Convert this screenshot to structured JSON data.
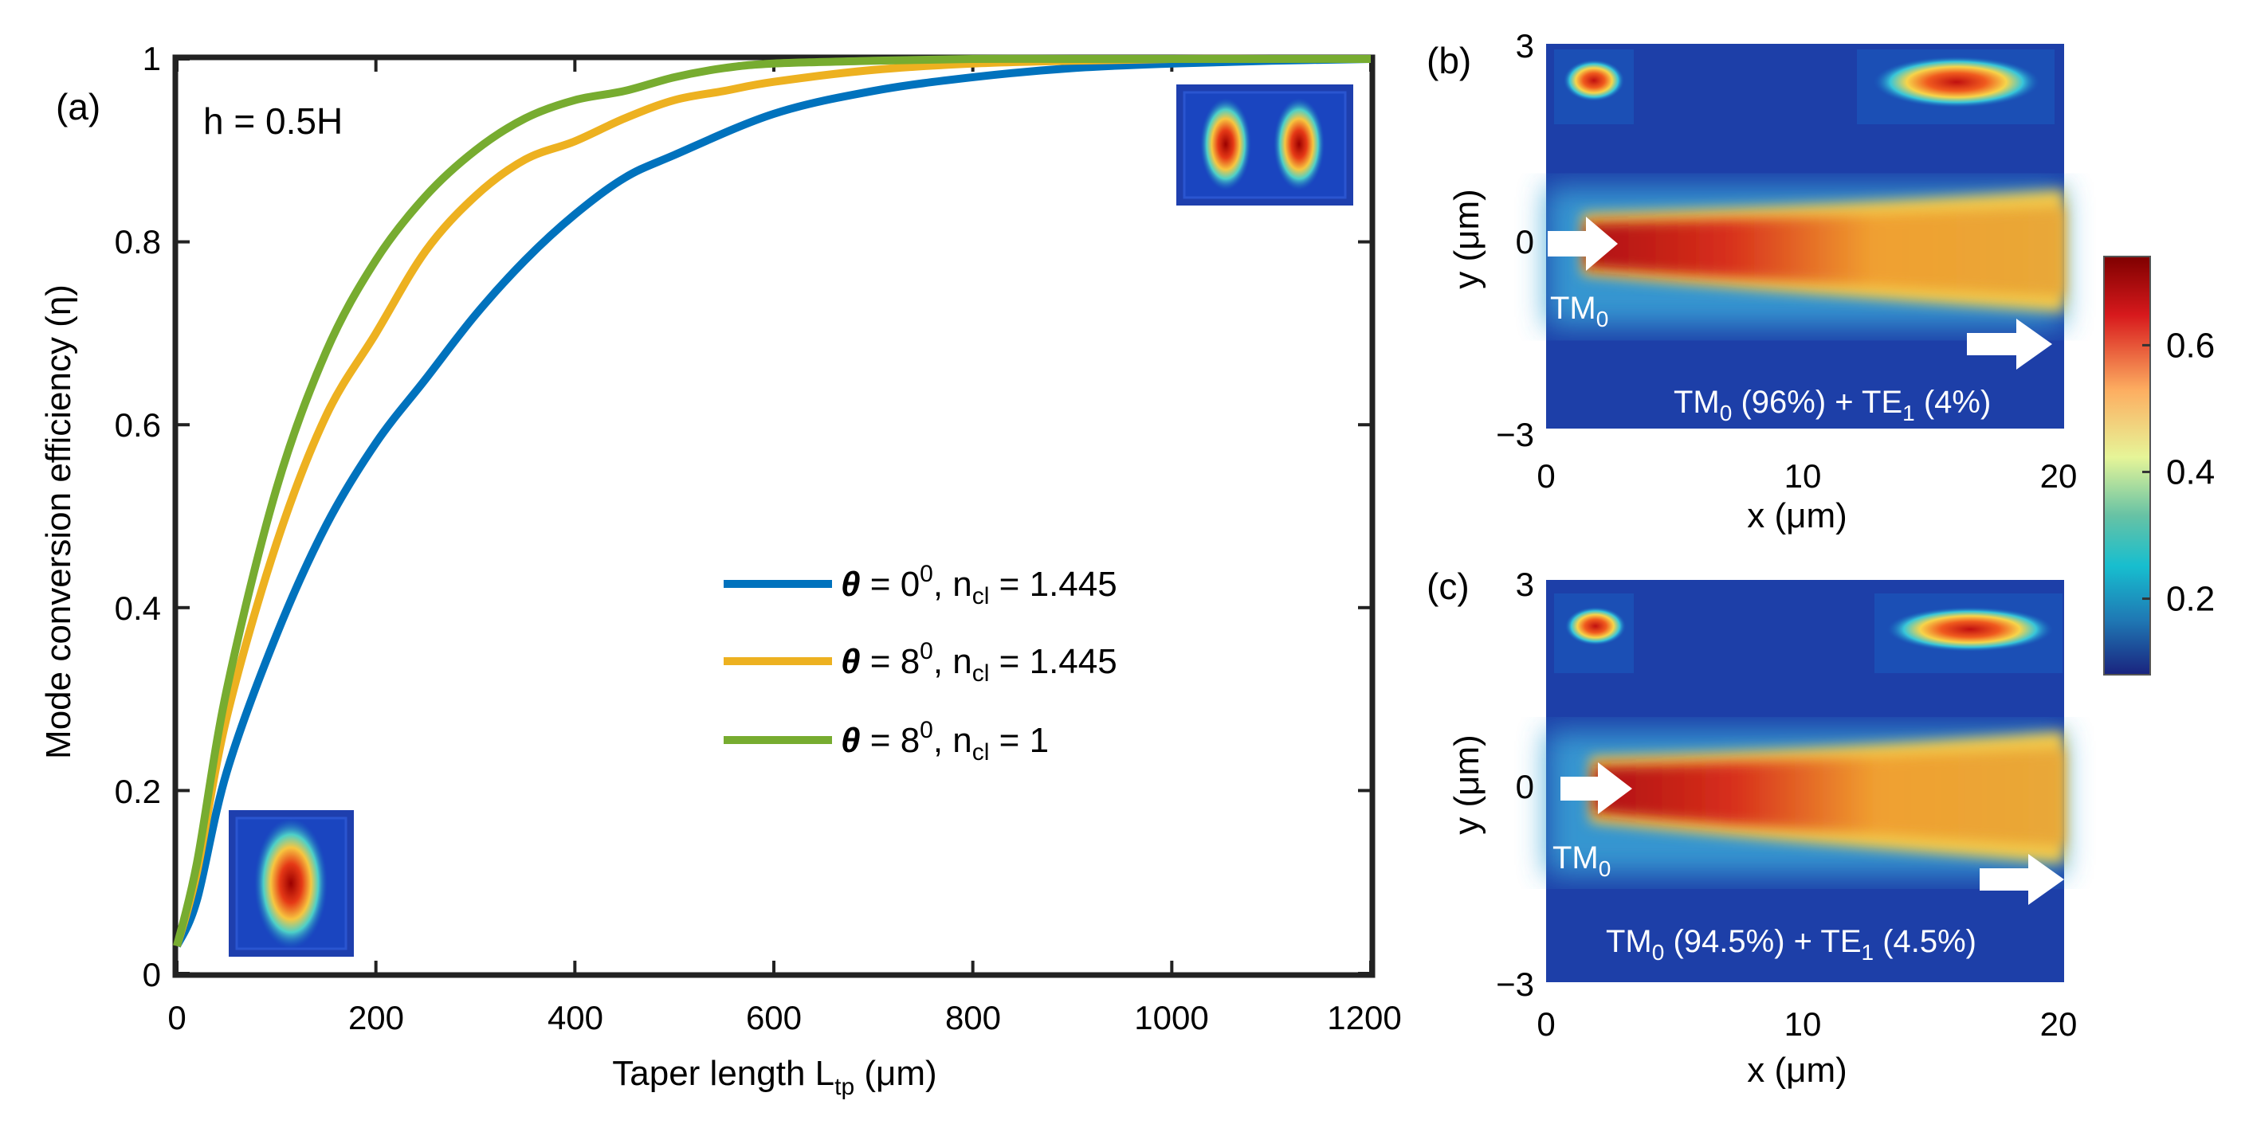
{
  "chart_data": [
    {
      "panel": "(a)",
      "type": "line",
      "annotation": "h = 0.5H",
      "xlabel": "Taper length L",
      "xlabel_sub": "tp",
      "xlabel_unit": " (μm)",
      "ylabel": "Mode conversion efficiency (η)",
      "xlim": [
        0,
        1200
      ],
      "ylim": [
        0,
        1
      ],
      "xticks": [
        "0",
        "200",
        "400",
        "600",
        "800",
        "1000",
        "1200"
      ],
      "yticks": [
        "0",
        "0.2",
        "0.4",
        "0.6",
        "0.8",
        "1"
      ],
      "legend_position": "center-right",
      "series": [
        {
          "name_theta": "θ",
          "name_angle": " = 0",
          "name_deg": "0",
          "name_ncl": ", n",
          "name_sub": "cl",
          "name_val": " = 1.445",
          "color": "#0072BD",
          "x": [
            0,
            20,
            50,
            100,
            150,
            200,
            250,
            300,
            350,
            400,
            450,
            500,
            600,
            700,
            800,
            900,
            1000,
            1100,
            1200
          ],
          "y": [
            0.03,
            0.08,
            0.22,
            0.37,
            0.49,
            0.58,
            0.65,
            0.72,
            0.78,
            0.83,
            0.87,
            0.895,
            0.94,
            0.965,
            0.98,
            0.99,
            0.995,
            0.998,
            1.0
          ]
        },
        {
          "name_theta": "θ",
          "name_angle": " = 8",
          "name_deg": "0",
          "name_ncl": ", n",
          "name_sub": "cl",
          "name_val": " = 1.445",
          "color": "#EDB120",
          "x": [
            0,
            20,
            50,
            100,
            150,
            200,
            250,
            300,
            350,
            400,
            450,
            500,
            550,
            600,
            700,
            800,
            900,
            1000,
            1100,
            1200
          ],
          "y": [
            0.03,
            0.11,
            0.28,
            0.47,
            0.61,
            0.7,
            0.79,
            0.85,
            0.89,
            0.91,
            0.935,
            0.955,
            0.965,
            0.975,
            0.988,
            0.995,
            0.998,
            1.0,
            1.0,
            1.0
          ]
        },
        {
          "name_theta": "θ",
          "name_angle": " = 8",
          "name_deg": "0",
          "name_ncl": ", n",
          "name_sub": "cl",
          "name_val": " = 1",
          "color": "#77AC30",
          "x": [
            0,
            20,
            50,
            100,
            150,
            200,
            250,
            300,
            350,
            400,
            450,
            500,
            550,
            600,
            700,
            800,
            900,
            1000,
            1100,
            1200
          ],
          "y": [
            0.03,
            0.12,
            0.31,
            0.53,
            0.68,
            0.78,
            0.85,
            0.9,
            0.935,
            0.955,
            0.965,
            0.98,
            0.99,
            0.995,
            0.998,
            1.0,
            1.0,
            1.0,
            1.0,
            1.0
          ]
        }
      ]
    },
    {
      "panel": "(b)",
      "type": "heatmap",
      "xlabel": "x (μm)",
      "ylabel": "y (μm)",
      "xticks": [
        "0",
        "10",
        "20"
      ],
      "yticks": [
        "3",
        "0",
        "−3"
      ],
      "xlim": [
        0,
        20
      ],
      "ylim": [
        -3,
        3
      ],
      "input_label": "TM",
      "input_sub": "0",
      "output_label_a": "TM",
      "output_sub_a": "0",
      "output_pct_a": " (96%) + TE",
      "output_sub_b": "1",
      "output_pct_b": " (4%)"
    },
    {
      "panel": "(c)",
      "type": "heatmap",
      "xlabel": "x (μm)",
      "ylabel": "y (μm)",
      "xticks": [
        "0",
        "10",
        "20"
      ],
      "yticks": [
        "3",
        "0",
        "−3"
      ],
      "xlim": [
        0,
        20
      ],
      "ylim": [
        -3,
        3
      ],
      "input_label": "TM",
      "input_sub": "0",
      "output_label_a": "TM",
      "output_sub_a": "0",
      "output_pct_a": " (94.5%) + TE",
      "output_sub_b": "1",
      "output_pct_b": " (4.5%)"
    }
  ],
  "colorbar": {
    "ticks": [
      "0.6",
      "0.4",
      "0.2"
    ],
    "tick_values": [
      0.6,
      0.4,
      0.2
    ],
    "range": [
      0.08,
      0.74
    ],
    "colors": [
      "#7f0000",
      "#d7191c",
      "#fdae61",
      "#e6f598",
      "#66c2a5",
      "#17becf",
      "#1f78b4",
      "#1a237e"
    ]
  }
}
